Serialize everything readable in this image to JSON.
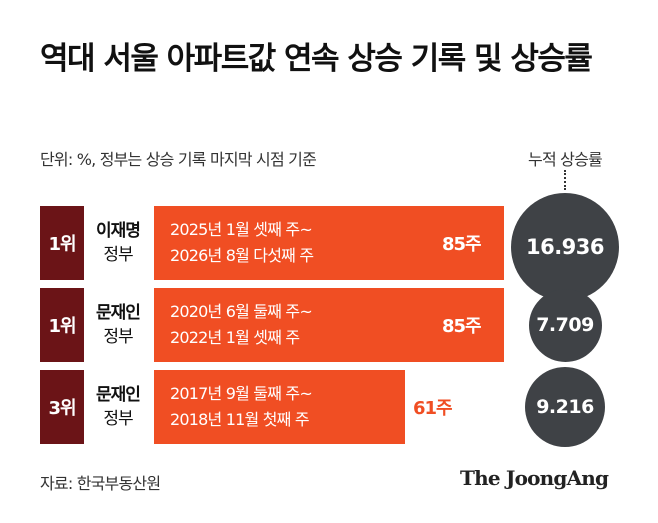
{
  "title": "역대 서울 아파트값 연속 상승 기록 및 상승률",
  "unit_note": "단위: %, 정부는 상승 기록 마지막 시점 기준",
  "cumulative_label": "누적 상승률",
  "source": "자료: 한국부동산원",
  "logo": "The JoongAng",
  "colors": {
    "bar": "#f04e23",
    "rank": "#6b1417",
    "circle": "#3f4246",
    "weeks_outside": "#f04e23"
  },
  "chart_data": {
    "type": "bar",
    "title": "역대 서울 아파트값 연속 상승 기록 및 상승률",
    "categories": [
      "이재명 정부",
      "문재인 정부",
      "문재인 정부"
    ],
    "rows": [
      {
        "rank": "1위",
        "gov_name": "이재명",
        "gov_suffix": "정부",
        "period_start": "2025년 1월 셋째 주~",
        "period_end": "2026년 8월 다섯째 주",
        "weeks": 85,
        "weeks_label": "85주",
        "cumulative": 16.936,
        "cumulative_label": "16.936"
      },
      {
        "rank": "1위",
        "gov_name": "문재인",
        "gov_suffix": "정부",
        "period_start": "2020년 6월 둘째 주~",
        "period_end": "2022년 1월 셋째 주",
        "weeks": 85,
        "weeks_label": "85주",
        "cumulative": 7.709,
        "cumulative_label": "7.709"
      },
      {
        "rank": "3위",
        "gov_name": "문재인",
        "gov_suffix": "정부",
        "period_start": "2017년 9월 둘째 주~",
        "period_end": "2018년 11월 첫째 주",
        "weeks": 61,
        "weeks_label": "61주",
        "cumulative": 9.216,
        "cumulative_label": "9.216"
      }
    ],
    "series": [
      {
        "name": "",
        "values": [
          85,
          85,
          61
        ]
      },
      {
        "name": "누적 상승률",
        "values": [
          16.936,
          7.709,
          9.216
        ]
      }
    ],
    "xlabel": "",
    "ylabel": "",
    "xlim": [
      0,
      85
    ]
  }
}
